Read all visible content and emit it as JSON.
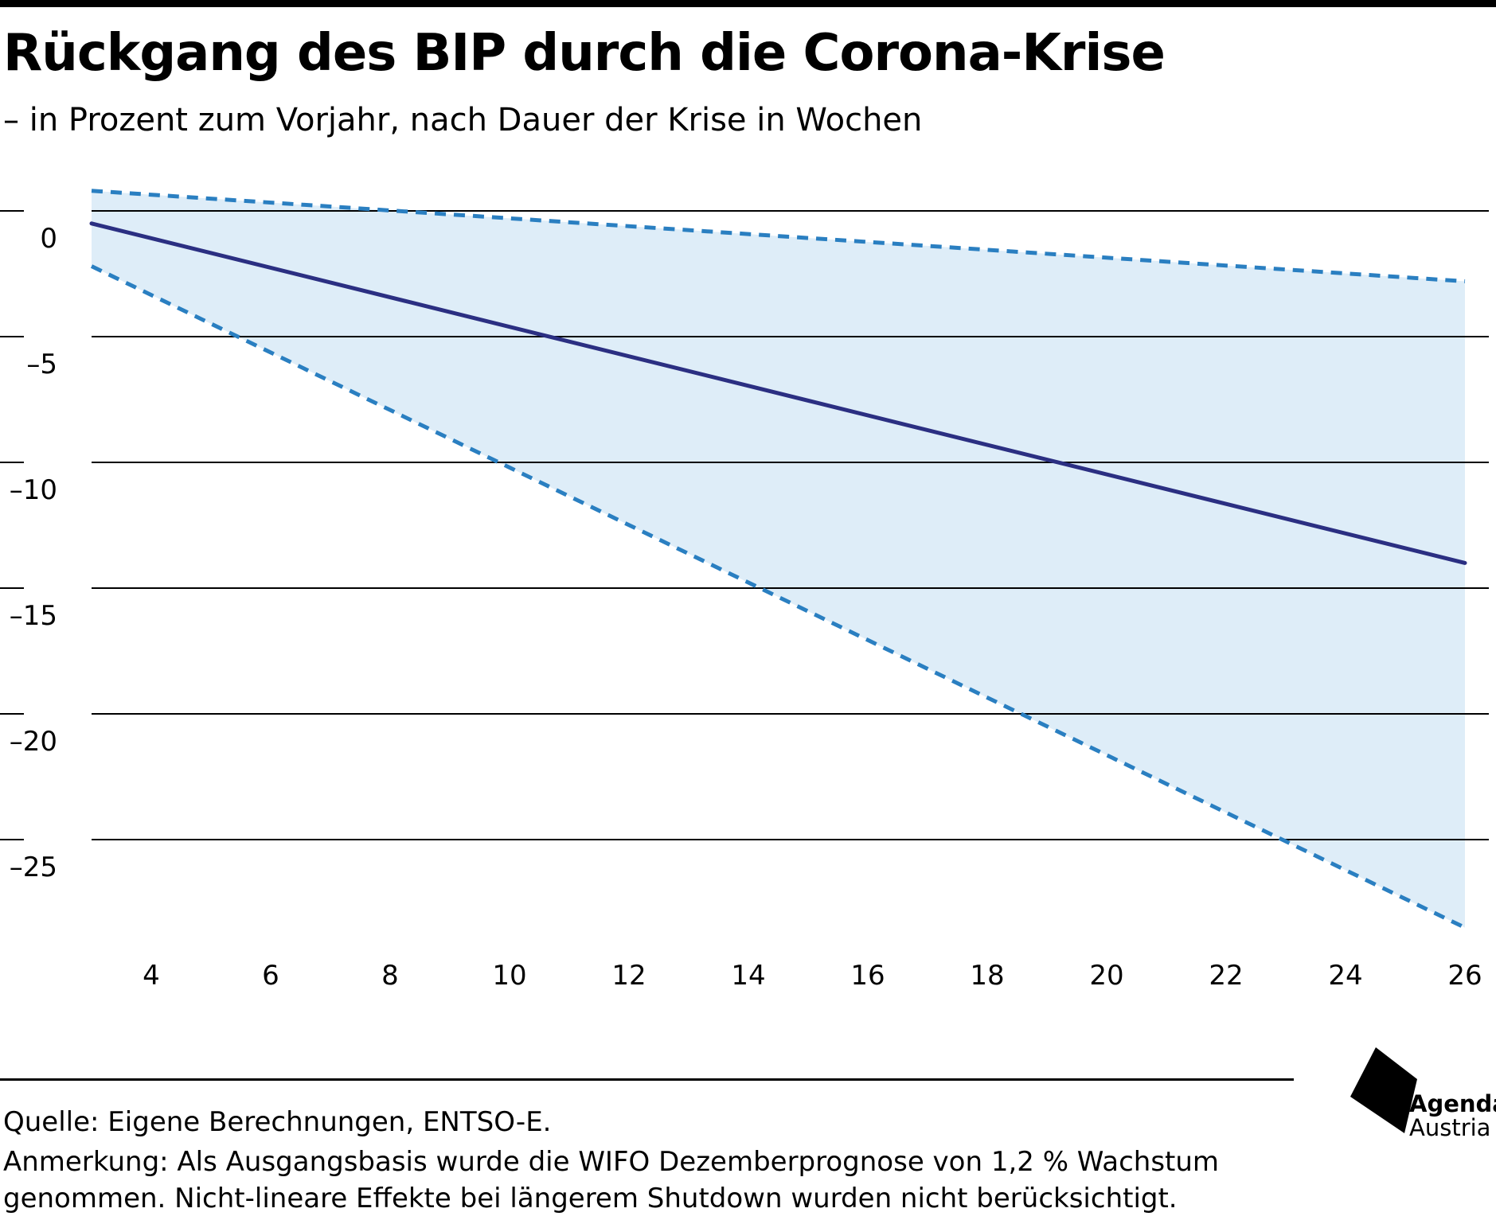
{
  "header": {
    "title": "Rückgang des BIP durch die Corona-Krise",
    "subtitle": "– in Prozent zum Vorjahr, nach Dauer der Krise in Wochen"
  },
  "chart_data": {
    "type": "line",
    "title": "Rückgang des BIP durch die Corona-Krise",
    "subtitle": "– in Prozent zum Vorjahr, nach Dauer der Krise in Wochen",
    "xlabel": "",
    "ylabel": "",
    "xlim": [
      3,
      26
    ],
    "ylim": [
      -28.5,
      1
    ],
    "x_ticks": [
      4,
      6,
      8,
      10,
      12,
      14,
      16,
      18,
      20,
      22,
      24,
      26
    ],
    "x_tick_labels": [
      "4",
      "6",
      "8",
      "10",
      "12",
      "14",
      "16",
      "18",
      "20",
      "22",
      "24",
      "26"
    ],
    "y_ticks": [
      0,
      -5,
      -10,
      -15,
      -20,
      -25
    ],
    "y_tick_labels": [
      "0",
      "–5",
      "–10",
      "–15",
      "–20",
      "–25"
    ],
    "grid": true,
    "legend": "none",
    "series": [
      {
        "values": [
          [
            3,
            0.8
          ],
          [
            26,
            -2.8
          ]
        ],
        "style": "dashed",
        "color": "#2a7fc1"
      },
      {
        "values": [
          [
            3,
            -0.5
          ],
          [
            26,
            -14.0
          ]
        ],
        "style": "solid",
        "color": "#2b2f82"
      },
      {
        "values": [
          [
            3,
            -2.2
          ],
          [
            26,
            -28.5
          ]
        ],
        "style": "dashed",
        "color": "#2a7fc1"
      }
    ],
    "band": {
      "upper": [
        [
          3,
          0.8
        ],
        [
          26,
          -2.8
        ]
      ],
      "lower": [
        [
          3,
          -2.2
        ],
        [
          26,
          -28.5
        ]
      ],
      "color": "#deedf8"
    }
  },
  "footer": {
    "source": "Quelle: Eigene Berechnungen, ENTSO-E.",
    "note": "Anmerkung: Als Ausgangsbasis wurde die WIFO Dezemberprognose von 1,2 % Wachstum genommen. Nicht-lineare Effekte bei längerem Shutdown wurden nicht berücksichtigt."
  },
  "logo": {
    "line1": "Agenda",
    "line2": "Austria"
  }
}
